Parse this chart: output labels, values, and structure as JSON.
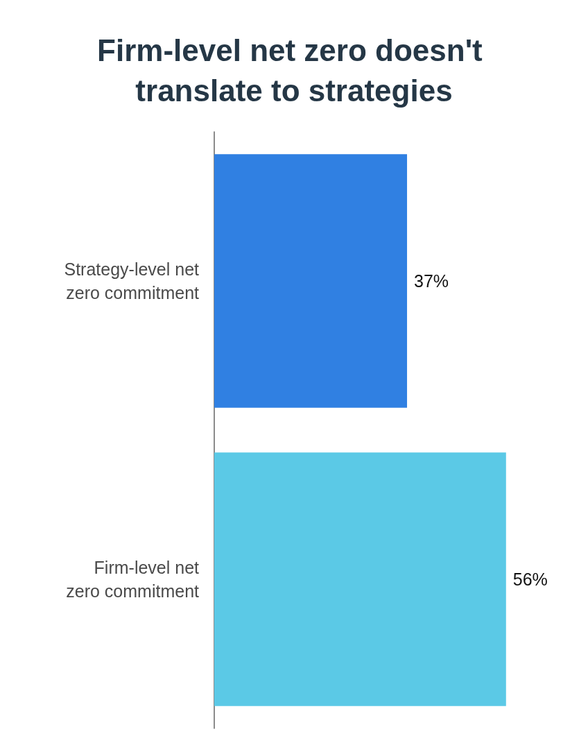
{
  "chart_data": {
    "type": "bar",
    "orientation": "horizontal",
    "title": "Firm-level net zero doesn't translate to strategies",
    "categories": [
      "Strategy-level net\nzero commitment",
      "Firm-level net\nzero commitment"
    ],
    "values": [
      37,
      56
    ],
    "colors": [
      "#3080e2",
      "#5bc9e6"
    ],
    "tick_labels": "y",
    "value_labels": [
      "37%",
      "56%"
    ]
  }
}
